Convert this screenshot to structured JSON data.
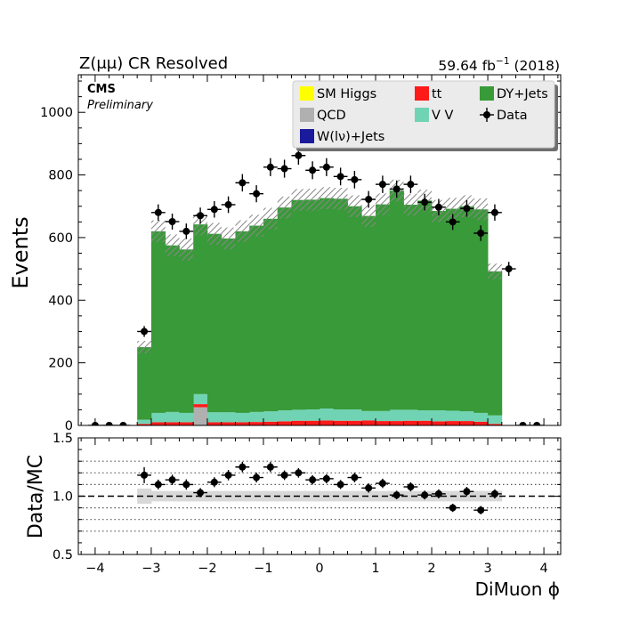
{
  "figure": {
    "title_left": "Z(μμ) CR Resolved",
    "lumi_value": "59.64 fb",
    "lumi_exp": "−1",
    "lumi_year": "(2018)",
    "cms_label": "CMS",
    "cms_sublabel": "Preliminary",
    "colors": {
      "sm_higgs": "#ffff00",
      "tt": "#ff1a1a",
      "dy_jets": "#389a38",
      "qcd": "#b0b0b0",
      "vv": "#70d4b4",
      "w_jets": "#1a1a9c",
      "data": "#000000",
      "unc_band": "#d8d8d8"
    }
  },
  "chart_data": [
    {
      "type": "bar",
      "stacked": true,
      "xlabel": "",
      "ylabel": "Events",
      "xlim": [
        -4.3,
        4.3
      ],
      "ylim": [
        0,
        1120
      ],
      "x_ticks": [
        -4,
        -3,
        -2,
        -1,
        0,
        1,
        2,
        3,
        4
      ],
      "y_ticks": [
        0,
        200,
        400,
        600,
        800,
        1000
      ],
      "bin_edges": [
        -3.25,
        -3.0,
        -2.75,
        -2.5,
        -2.25,
        -2.0,
        -1.75,
        -1.5,
        -1.25,
        -1.0,
        -0.75,
        -0.5,
        -0.25,
        0.0,
        0.25,
        0.5,
        0.75,
        1.0,
        1.25,
        1.5,
        1.75,
        2.0,
        2.25,
        2.5,
        2.75,
        3.0,
        3.25
      ],
      "legend": {
        "position": "top-right",
        "columns": 3
      },
      "series": [
        {
          "name": "SM Higgs",
          "color_key": "sm_higgs",
          "values": [
            0,
            0,
            0,
            0,
            0,
            0,
            0,
            0,
            0,
            0,
            0,
            0,
            0,
            0,
            0,
            0,
            0,
            0,
            0,
            0,
            0,
            0,
            0,
            0,
            0,
            0
          ]
        },
        {
          "name": "QCD",
          "color_key": "qcd",
          "values": [
            0,
            0,
            0,
            0,
            58,
            0,
            0,
            0,
            0,
            0,
            0,
            0,
            0,
            0,
            0,
            0,
            0,
            0,
            0,
            0,
            0,
            0,
            0,
            0,
            0,
            0
          ]
        },
        {
          "name": "W(lν)+Jets",
          "color_key": "w_jets",
          "values": [
            0,
            0,
            0,
            0,
            0,
            0,
            0,
            0,
            0,
            0,
            0,
            0,
            0,
            0,
            0,
            0,
            0,
            0,
            0,
            0,
            0,
            0,
            0,
            0,
            0,
            0
          ]
        },
        {
          "name": "tt",
          "color_key": "tt",
          "values": [
            5,
            10,
            10,
            10,
            10,
            10,
            10,
            10,
            11,
            12,
            13,
            15,
            15,
            16,
            15,
            15,
            16,
            14,
            14,
            15,
            15,
            13,
            14,
            14,
            12,
            5
          ]
        },
        {
          "name": "V V",
          "color_key": "vv",
          "values": [
            13,
            30,
            33,
            30,
            32,
            32,
            32,
            30,
            32,
            33,
            35,
            35,
            36,
            38,
            36,
            36,
            30,
            32,
            36,
            35,
            33,
            35,
            33,
            31,
            28,
            27
          ]
        },
        {
          "name": "DY+Jets",
          "color_key": "dy_jets",
          "values": [
            232,
            580,
            532,
            522,
            542,
            570,
            555,
            580,
            595,
            615,
            648,
            670,
            670,
            672,
            673,
            649,
            623,
            660,
            700,
            655,
            670,
            637,
            645,
            655,
            650,
            460
          ]
        }
      ],
      "mc_uncertainty": [
        20,
        35,
        35,
        35,
        35,
        35,
        35,
        35,
        35,
        35,
        35,
        35,
        35,
        35,
        35,
        35,
        35,
        35,
        35,
        35,
        35,
        35,
        35,
        35,
        35,
        25
      ],
      "data": {
        "name": "Data",
        "x": [
          -4.0,
          -3.75,
          -3.5,
          -3.125,
          -2.875,
          -2.625,
          -2.375,
          -2.125,
          -1.875,
          -1.625,
          -1.375,
          -1.125,
          -0.875,
          -0.625,
          -0.375,
          -0.125,
          0.125,
          0.375,
          0.625,
          0.875,
          1.125,
          1.375,
          1.625,
          1.875,
          2.125,
          2.375,
          2.625,
          2.875,
          3.125,
          3.375,
          3.625,
          3.875
        ],
        "y": [
          0,
          0,
          0,
          300,
          680,
          651,
          620,
          670,
          690,
          705,
          775,
          740,
          825,
          820,
          862,
          815,
          825,
          795,
          785,
          722,
          770,
          755,
          770,
          713,
          697,
          650,
          693,
          614,
          680,
          500,
          0,
          0
        ]
      }
    },
    {
      "type": "scatter",
      "xlabel": "DiMuon ϕ",
      "ylabel": "Data/MC",
      "xlim": [
        -4.3,
        4.3
      ],
      "ylim": [
        0.5,
        1.5
      ],
      "x_ticks": [
        -4,
        -3,
        -2,
        -1,
        0,
        1,
        2,
        3,
        4
      ],
      "y_ticks": [
        0.5,
        1.0,
        1.5
      ],
      "y_tick_labels": [
        "0.5",
        "1.0",
        "1.5"
      ],
      "reference_line": 1.0,
      "grid_y": [
        0.7,
        0.8,
        0.9,
        1.1,
        1.2,
        1.3
      ],
      "ratio_band": [
        0.065,
        0.045,
        0.045,
        0.045,
        0.045,
        0.045,
        0.045,
        0.045,
        0.045,
        0.045,
        0.045,
        0.045,
        0.045,
        0.045,
        0.045,
        0.045,
        0.045,
        0.045,
        0.045,
        0.045,
        0.045,
        0.045,
        0.045,
        0.045,
        0.045,
        0.045
      ],
      "x": [
        -3.125,
        -2.875,
        -2.625,
        -2.375,
        -2.125,
        -1.875,
        -1.625,
        -1.375,
        -1.125,
        -0.875,
        -0.625,
        -0.375,
        -0.125,
        0.125,
        0.375,
        0.625,
        0.875,
        1.125,
        1.375,
        1.625,
        1.875,
        2.125,
        2.375,
        2.625,
        2.875,
        3.125
      ],
      "y": [
        1.18,
        1.1,
        1.14,
        1.1,
        1.03,
        1.12,
        1.18,
        1.25,
        1.16,
        1.25,
        1.18,
        1.2,
        1.14,
        1.15,
        1.1,
        1.16,
        1.07,
        1.11,
        1.01,
        1.08,
        1.01,
        1.02,
        0.9,
        1.04,
        0.88,
        1.02
      ]
    }
  ]
}
